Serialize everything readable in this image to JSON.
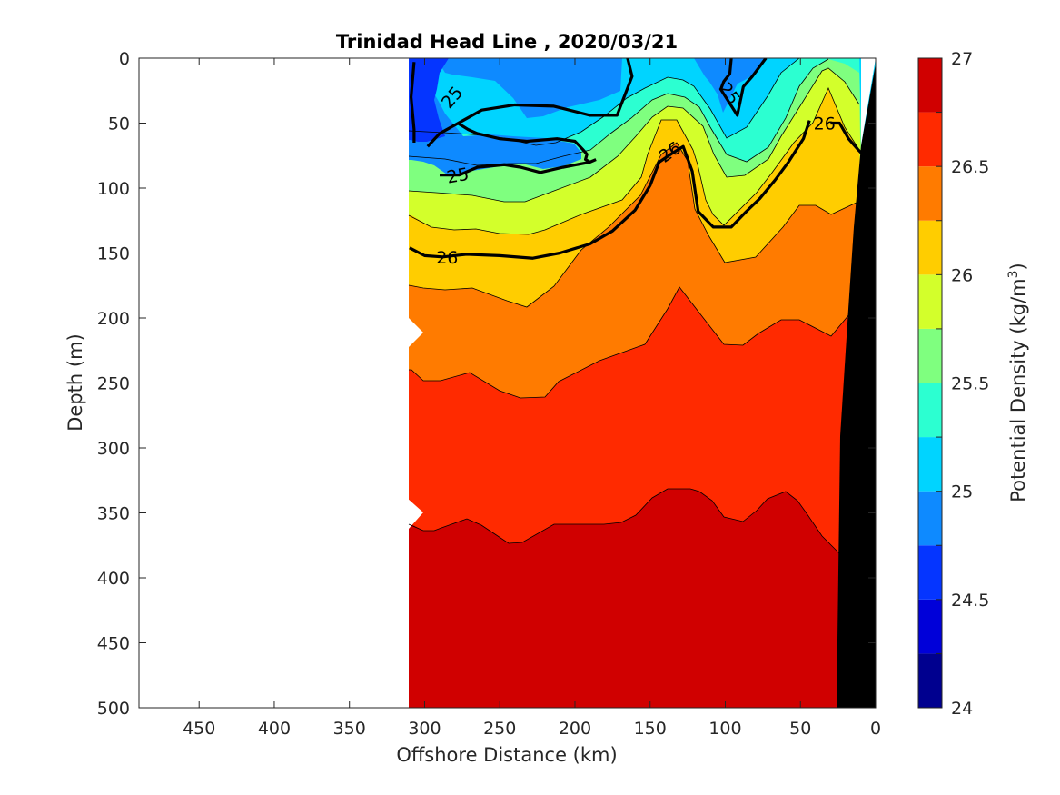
{
  "chart_data": {
    "type": "contour",
    "title": "Trinidad Head Line , 2020/03/21",
    "xlabel": "Offshore Distance (km)",
    "ylabel": "Depth (m)",
    "colorbar_label": "Potential Density (kg/m",
    "colorbar_label_sup": "3",
    "colorbar_label_close": ")",
    "x_range": [
      490,
      0
    ],
    "x_reversed": true,
    "y_range": [
      0,
      500
    ],
    "y_reversed": true,
    "x_ticks": [
      "450",
      "400",
      "350",
      "300",
      "250",
      "200",
      "150",
      "100",
      "50",
      "0"
    ],
    "y_ticks": [
      "0",
      "50",
      "100",
      "150",
      "200",
      "250",
      "300",
      "350",
      "400",
      "450",
      "500"
    ],
    "colorbar_range": [
      24,
      27
    ],
    "colorbar_ticks": [
      "24",
      "24.5",
      "25",
      "25.5",
      "26",
      "26.5",
      "27"
    ],
    "levels": [
      24,
      24.25,
      24.5,
      24.75,
      25,
      25.25,
      25.5,
      25.75,
      26,
      26.25,
      26.5,
      26.75,
      27
    ],
    "colors": [
      "#00008f",
      "#0000d9",
      "#0535ff",
      "#0e8aff",
      "#00d4ff",
      "#2cffd1",
      "#7fff7f",
      "#d3ff2b",
      "#ffcd00",
      "#ff7b00",
      "#ff2a00",
      "#d00000"
    ],
    "data_extent_km": [
      310,
      0
    ],
    "bold_contours": [
      {
        "value": "25",
        "points": [
          [
            307,
            3
          ],
          [
            309,
            30
          ],
          [
            307,
            55
          ],
          [
            307,
            65
          ]
        ]
      },
      {
        "value": "25",
        "points": [
          [
            298,
            68
          ],
          [
            290,
            58
          ],
          [
            262,
            40
          ],
          [
            240,
            36
          ],
          [
            214,
            37
          ],
          [
            190,
            44
          ],
          [
            172,
            44
          ],
          [
            162,
            14
          ],
          [
            165,
            0
          ]
        ]
      },
      {
        "value": "25",
        "points": [
          [
            290,
            90
          ],
          [
            277,
            90
          ],
          [
            265,
            84
          ],
          [
            247,
            82
          ],
          [
            236,
            84
          ],
          [
            223,
            88
          ],
          [
            208,
            84
          ],
          [
            190,
            80
          ],
          [
            186,
            78
          ]
        ]
      },
      {
        "value": "25",
        "points": [
          [
            278,
            50
          ],
          [
            271,
            55
          ],
          [
            265,
            58
          ],
          [
            250,
            62
          ],
          [
            232,
            64
          ],
          [
            212,
            62
          ],
          [
            200,
            64
          ],
          [
            195,
            70
          ],
          [
            192,
            74
          ],
          [
            193,
            78
          ],
          [
            190,
            80
          ]
        ]
      },
      {
        "value": "25",
        "points": [
          [
            96,
            0
          ],
          [
            97,
            12
          ],
          [
            101,
            18
          ],
          [
            103,
            24
          ],
          [
            92,
            44
          ],
          [
            88,
            22
          ],
          [
            82,
            14
          ],
          [
            73,
            0
          ]
        ]
      },
      {
        "value": "26",
        "points": [
          [
            310,
            146
          ],
          [
            300,
            152
          ],
          [
            288,
            153
          ],
          [
            272,
            151
          ],
          [
            250,
            152
          ],
          [
            228,
            154
          ],
          [
            210,
            150
          ],
          [
            190,
            143
          ],
          [
            175,
            133
          ],
          [
            160,
            117
          ],
          [
            150,
            98
          ],
          [
            144,
            80
          ],
          [
            135,
            73
          ],
          [
            128,
            68
          ],
          [
            122,
            87
          ],
          [
            118,
            118
          ],
          [
            108,
            130
          ],
          [
            96,
            130
          ],
          [
            86,
            118
          ],
          [
            77,
            108
          ],
          [
            67,
            94
          ],
          [
            58,
            80
          ],
          [
            48,
            62
          ],
          [
            44,
            48
          ]
        ]
      },
      {
        "value": "26",
        "points": [
          [
            30,
            50
          ],
          [
            24,
            50
          ],
          [
            18,
            62
          ],
          [
            12,
            70
          ],
          [
            7,
            76
          ]
        ]
      }
    ],
    "contour_labels": [
      {
        "text": "25",
        "x": 282,
        "y": 30,
        "rotate": -50
      },
      {
        "text": "25",
        "x": 97,
        "y": 27,
        "rotate": 55
      },
      {
        "text": "25",
        "x": 278,
        "y": 90,
        "rotate": -10
      },
      {
        "text": "26",
        "x": 285,
        "y": 153,
        "rotate": 0
      },
      {
        "text": "26",
        "x": 137,
        "y": 72,
        "rotate": -35
      },
      {
        "text": "26",
        "x": 34,
        "y": 50,
        "rotate": 0
      }
    ]
  }
}
